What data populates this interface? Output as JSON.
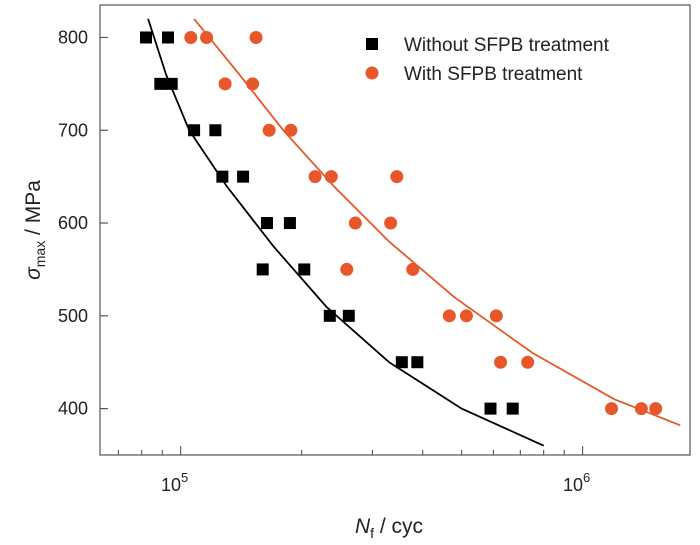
{
  "chart_data": {
    "type": "scatter",
    "x_scale": "log",
    "xlim": [
      63000,
      1850000
    ],
    "ylim": [
      350,
      835
    ],
    "x_ticks": [
      {
        "value": 100000,
        "base": "10",
        "exp": "5"
      },
      {
        "value": 1000000,
        "base": "10",
        "exp": "6"
      }
    ],
    "y_ticks": [
      400,
      500,
      600,
      700,
      800
    ],
    "xlabel": {
      "main": "N",
      "sub": "f",
      "rest": " / cyc"
    },
    "ylabel": {
      "main": "σ",
      "sub": "max",
      "rest": " / MPa"
    },
    "legend_position": "top-right",
    "grid": false,
    "series": [
      {
        "name": "Without SFPB treatment",
        "marker": "square",
        "color": "#000000",
        "points": [
          [
            82000,
            800
          ],
          [
            93000,
            800
          ],
          [
            89000,
            750
          ],
          [
            95000,
            750
          ],
          [
            108000,
            700
          ],
          [
            122000,
            700
          ],
          [
            127000,
            650
          ],
          [
            143000,
            650
          ],
          [
            164000,
            600
          ],
          [
            187000,
            600
          ],
          [
            160000,
            550
          ],
          [
            203000,
            550
          ],
          [
            235000,
            500
          ],
          [
            262000,
            500
          ],
          [
            355000,
            450
          ],
          [
            388000,
            450
          ],
          [
            590000,
            400
          ],
          [
            670000,
            400
          ]
        ],
        "fit": [
          [
            83000,
            820
          ],
          [
            92000,
            760
          ],
          [
            105000,
            700
          ],
          [
            130000,
            640
          ],
          [
            170000,
            575
          ],
          [
            230000,
            510
          ],
          [
            330000,
            450
          ],
          [
            500000,
            400
          ],
          [
            800000,
            360
          ]
        ]
      },
      {
        "name": "With SFPB treatment",
        "marker": "circle",
        "color": "#e8572a",
        "points": [
          [
            106000,
            800
          ],
          [
            116000,
            800
          ],
          [
            154000,
            800
          ],
          [
            129000,
            750
          ],
          [
            151000,
            750
          ],
          [
            166000,
            700
          ],
          [
            188000,
            700
          ],
          [
            216000,
            650
          ],
          [
            237000,
            650
          ],
          [
            345000,
            650
          ],
          [
            272000,
            600
          ],
          [
            333000,
            600
          ],
          [
            259000,
            550
          ],
          [
            378000,
            550
          ],
          [
            466000,
            500
          ],
          [
            514000,
            500
          ],
          [
            610000,
            500
          ],
          [
            625000,
            450
          ],
          [
            730000,
            450
          ],
          [
            1180000,
            400
          ],
          [
            1400000,
            400
          ],
          [
            1520000,
            400
          ]
        ],
        "fit": [
          [
            108000,
            820
          ],
          [
            140000,
            760
          ],
          [
            180000,
            700
          ],
          [
            240000,
            640
          ],
          [
            330000,
            580
          ],
          [
            480000,
            520
          ],
          [
            750000,
            460
          ],
          [
            1200000,
            410
          ],
          [
            1750000,
            382
          ]
        ]
      }
    ]
  }
}
